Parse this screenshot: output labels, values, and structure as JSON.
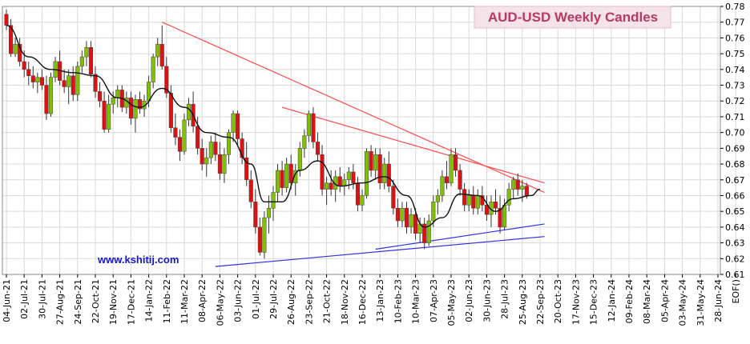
{
  "chart_data": {
    "type": "candlestick",
    "title": "AUD-USD Weekly Candles",
    "watermark": "www.kshitij.com",
    "ylim": [
      0.61,
      0.78
    ],
    "y_ticks": [
      0.61,
      0.62,
      0.63,
      0.64,
      0.65,
      0.66,
      0.67,
      0.68,
      0.69,
      0.7,
      0.71,
      0.72,
      0.73,
      0.74,
      0.75,
      0.76,
      0.77,
      0.78
    ],
    "x_labels": [
      "04-Jun-21",
      "02-Jul-21",
      "30-Jul-21",
      "27-Aug-21",
      "24-Sep-21",
      "22-Oct-21",
      "19-Nov-21",
      "17-Dec-21",
      "14-Jan-22",
      "11-Feb-22",
      "11-Mar-22",
      "08-Apr-22",
      "06-May-22",
      "03-Jun-22",
      "01-Jul-22",
      "29-Jul-22",
      "26-Aug-22",
      "23-Sep-22",
      "21-Oct-22",
      "18-Nov-22",
      "16-Dec-22",
      "13-Jan-23",
      "10-Feb-23",
      "10-Mar-23",
      "07-Apr-23",
      "05-May-23",
      "02-Jun-23",
      "30-Jun-23",
      "28-Jul-23",
      "25-Aug-23",
      "22-Sep-23",
      "20-Oct-23",
      "17-Nov-23",
      "15-Dec-23",
      "12-Jan-24",
      "09-Feb-24",
      "08-Mar-24",
      "05-Apr-24",
      "03-May-24",
      "31-May-24",
      "28-Jun-24",
      "EOF()"
    ],
    "label_step_weeks": 4,
    "up_color": "#80c000",
    "down_color": "#e01010",
    "ma_color": "#111111",
    "upper_trend_color": "#ff4a4a",
    "lower_trend_color": "#3030e0",
    "candles": [
      [
        0.775,
        0.778,
        0.765,
        0.768
      ],
      [
        0.768,
        0.772,
        0.748,
        0.75
      ],
      [
        0.75,
        0.76,
        0.748,
        0.756
      ],
      [
        0.756,
        0.76,
        0.742,
        0.745
      ],
      [
        0.745,
        0.752,
        0.735,
        0.74
      ],
      [
        0.74,
        0.745,
        0.73,
        0.736
      ],
      [
        0.736,
        0.742,
        0.728,
        0.732
      ],
      [
        0.732,
        0.738,
        0.725,
        0.735
      ],
      [
        0.735,
        0.74,
        0.727,
        0.73
      ],
      [
        0.73,
        0.736,
        0.708,
        0.712
      ],
      [
        0.712,
        0.738,
        0.71,
        0.735
      ],
      [
        0.735,
        0.748,
        0.732,
        0.745
      ],
      [
        0.745,
        0.752,
        0.73,
        0.733
      ],
      [
        0.733,
        0.74,
        0.725,
        0.729
      ],
      [
        0.729,
        0.74,
        0.718,
        0.736
      ],
      [
        0.736,
        0.742,
        0.72,
        0.724
      ],
      [
        0.724,
        0.745,
        0.72,
        0.742
      ],
      [
        0.742,
        0.752,
        0.738,
        0.748
      ],
      [
        0.748,
        0.758,
        0.742,
        0.754
      ],
      [
        0.754,
        0.758,
        0.735,
        0.737
      ],
      [
        0.737,
        0.742,
        0.722,
        0.726
      ],
      [
        0.726,
        0.732,
        0.716,
        0.72
      ],
      [
        0.72,
        0.726,
        0.7,
        0.702
      ],
      [
        0.702,
        0.724,
        0.7,
        0.718
      ],
      [
        0.718,
        0.726,
        0.712,
        0.722
      ],
      [
        0.722,
        0.73,
        0.716,
        0.727
      ],
      [
        0.727,
        0.73,
        0.713,
        0.716
      ],
      [
        0.716,
        0.726,
        0.712,
        0.722
      ],
      [
        0.722,
        0.726,
        0.705,
        0.709
      ],
      [
        0.709,
        0.724,
        0.7,
        0.721
      ],
      [
        0.721,
        0.726,
        0.712,
        0.715
      ],
      [
        0.715,
        0.724,
        0.71,
        0.72
      ],
      [
        0.72,
        0.736,
        0.716,
        0.732
      ],
      [
        0.732,
        0.75,
        0.728,
        0.748
      ],
      [
        0.748,
        0.76,
        0.742,
        0.756
      ],
      [
        0.756,
        0.768,
        0.74,
        0.742
      ],
      [
        0.742,
        0.748,
        0.722,
        0.725
      ],
      [
        0.725,
        0.73,
        0.7,
        0.703
      ],
      [
        0.703,
        0.712,
        0.692,
        0.697
      ],
      [
        0.697,
        0.702,
        0.682,
        0.688
      ],
      [
        0.688,
        0.712,
        0.686,
        0.708
      ],
      [
        0.708,
        0.722,
        0.704,
        0.718
      ],
      [
        0.718,
        0.726,
        0.7,
        0.704
      ],
      [
        0.704,
        0.71,
        0.686,
        0.69
      ],
      [
        0.69,
        0.696,
        0.676,
        0.68
      ],
      [
        0.68,
        0.69,
        0.672,
        0.684
      ],
      [
        0.684,
        0.698,
        0.68,
        0.694
      ],
      [
        0.694,
        0.7,
        0.682,
        0.686
      ],
      [
        0.686,
        0.694,
        0.67,
        0.674
      ],
      [
        0.674,
        0.69,
        0.668,
        0.686
      ],
      [
        0.686,
        0.702,
        0.68,
        0.7
      ],
      [
        0.7,
        0.714,
        0.694,
        0.712
      ],
      [
        0.712,
        0.714,
        0.692,
        0.696
      ],
      [
        0.696,
        0.7,
        0.68,
        0.684
      ],
      [
        0.684,
        0.694,
        0.666,
        0.67
      ],
      [
        0.67,
        0.676,
        0.652,
        0.656
      ],
      [
        0.656,
        0.664,
        0.636,
        0.64
      ],
      [
        0.64,
        0.646,
        0.622,
        0.624
      ],
      [
        0.624,
        0.65,
        0.62,
        0.646
      ],
      [
        0.646,
        0.66,
        0.636,
        0.652
      ],
      [
        0.652,
        0.666,
        0.644,
        0.662
      ],
      [
        0.662,
        0.68,
        0.656,
        0.676
      ],
      [
        0.676,
        0.682,
        0.66,
        0.665
      ],
      [
        0.665,
        0.684,
        0.662,
        0.68
      ],
      [
        0.68,
        0.686,
        0.664,
        0.668
      ],
      [
        0.668,
        0.68,
        0.66,
        0.676
      ],
      [
        0.676,
        0.694,
        0.672,
        0.69
      ],
      [
        0.69,
        0.702,
        0.684,
        0.698
      ],
      [
        0.698,
        0.714,
        0.694,
        0.712
      ],
      [
        0.712,
        0.716,
        0.69,
        0.694
      ],
      [
        0.694,
        0.7,
        0.682,
        0.686
      ],
      [
        0.686,
        0.692,
        0.66,
        0.664
      ],
      [
        0.664,
        0.672,
        0.654,
        0.668
      ],
      [
        0.668,
        0.676,
        0.66,
        0.664
      ],
      [
        0.664,
        0.676,
        0.656,
        0.672
      ],
      [
        0.672,
        0.678,
        0.662,
        0.666
      ],
      [
        0.666,
        0.674,
        0.66,
        0.67
      ],
      [
        0.67,
        0.678,
        0.664,
        0.675
      ],
      [
        0.675,
        0.68,
        0.664,
        0.668
      ],
      [
        0.668,
        0.672,
        0.65,
        0.654
      ],
      [
        0.654,
        0.664,
        0.65,
        0.66
      ],
      [
        0.66,
        0.69,
        0.658,
        0.688
      ],
      [
        0.688,
        0.692,
        0.672,
        0.676
      ],
      [
        0.676,
        0.69,
        0.67,
        0.686
      ],
      [
        0.686,
        0.69,
        0.664,
        0.668
      ],
      [
        0.668,
        0.684,
        0.664,
        0.68
      ],
      [
        0.68,
        0.688,
        0.662,
        0.666
      ],
      [
        0.666,
        0.67,
        0.648,
        0.652
      ],
      [
        0.652,
        0.658,
        0.64,
        0.644
      ],
      [
        0.644,
        0.656,
        0.64,
        0.652
      ],
      [
        0.652,
        0.656,
        0.636,
        0.64
      ],
      [
        0.64,
        0.652,
        0.636,
        0.648
      ],
      [
        0.648,
        0.652,
        0.632,
        0.636
      ],
      [
        0.636,
        0.646,
        0.63,
        0.642
      ],
      [
        0.642,
        0.646,
        0.626,
        0.63
      ],
      [
        0.63,
        0.648,
        0.628,
        0.644
      ],
      [
        0.644,
        0.66,
        0.64,
        0.656
      ],
      [
        0.656,
        0.664,
        0.648,
        0.66
      ],
      [
        0.66,
        0.676,
        0.656,
        0.672
      ],
      [
        0.672,
        0.682,
        0.664,
        0.668
      ],
      [
        0.668,
        0.69,
        0.666,
        0.686
      ],
      [
        0.686,
        0.69,
        0.672,
        0.676
      ],
      [
        0.676,
        0.68,
        0.66,
        0.664
      ],
      [
        0.664,
        0.668,
        0.65,
        0.654
      ],
      [
        0.654,
        0.664,
        0.65,
        0.66
      ],
      [
        0.66,
        0.666,
        0.648,
        0.652
      ],
      [
        0.652,
        0.664,
        0.648,
        0.66
      ],
      [
        0.66,
        0.666,
        0.65,
        0.654
      ],
      [
        0.654,
        0.66,
        0.644,
        0.648
      ],
      [
        0.648,
        0.66,
        0.64,
        0.656
      ],
      [
        0.656,
        0.664,
        0.648,
        0.652
      ],
      [
        0.652,
        0.66,
        0.636,
        0.64
      ],
      [
        0.64,
        0.658,
        0.638,
        0.654
      ],
      [
        0.654,
        0.668,
        0.65,
        0.664
      ],
      [
        0.664,
        0.672,
        0.658,
        0.67
      ],
      [
        0.67,
        0.674,
        0.66,
        0.664
      ],
      [
        0.664,
        0.67,
        0.656,
        0.666
      ],
      [
        0.666,
        0.668,
        0.658,
        0.66
      ]
    ],
    "ma": [
      [
        0,
        0.768
      ],
      [
        5,
        0.748
      ],
      [
        10,
        0.74
      ],
      [
        15,
        0.738
      ],
      [
        20,
        0.736
      ],
      [
        25,
        0.722
      ],
      [
        30,
        0.716
      ],
      [
        35,
        0.728
      ],
      [
        40,
        0.716
      ],
      [
        45,
        0.7
      ],
      [
        50,
        0.697
      ],
      [
        55,
        0.68
      ],
      [
        58,
        0.656
      ],
      [
        62,
        0.656
      ],
      [
        66,
        0.676
      ],
      [
        70,
        0.682
      ],
      [
        75,
        0.666
      ],
      [
        80,
        0.668
      ],
      [
        85,
        0.672
      ],
      [
        90,
        0.66
      ],
      [
        94,
        0.64
      ],
      [
        98,
        0.646
      ],
      [
        102,
        0.661
      ],
      [
        106,
        0.66
      ],
      [
        110,
        0.65
      ],
      [
        114,
        0.658
      ],
      [
        118,
        0.66
      ],
      [
        120,
        0.664
      ]
    ],
    "trendlines": [
      {
        "role": "upper",
        "points": [
          [
            35,
            0.77
          ],
          [
            121,
            0.662
          ]
        ]
      },
      {
        "role": "upper",
        "points": [
          [
            62,
            0.716
          ],
          [
            121,
            0.668
          ]
        ]
      },
      {
        "role": "lower",
        "points": [
          [
            47,
            0.615
          ],
          [
            121,
            0.634
          ]
        ]
      },
      {
        "role": "lower",
        "points": [
          [
            83,
            0.626
          ],
          [
            121,
            0.642
          ]
        ]
      }
    ]
  }
}
